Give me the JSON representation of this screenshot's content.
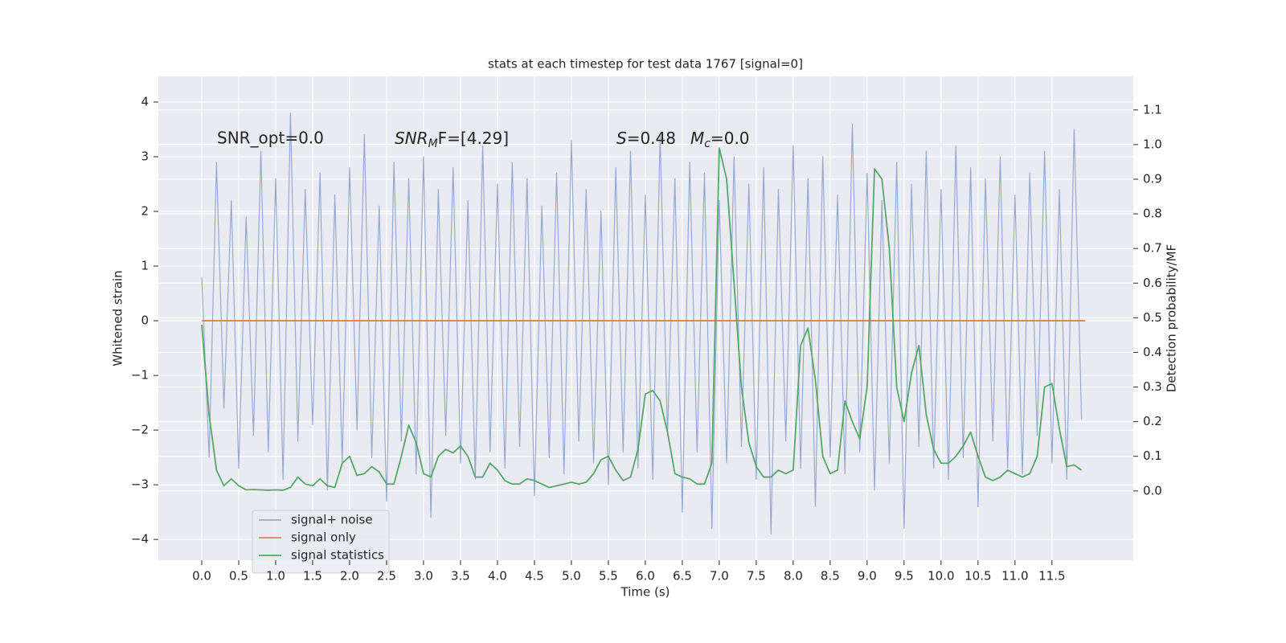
{
  "chart_data": {
    "type": "line",
    "title": "stats at each timestep for test data 1767 [signal=0]",
    "xlabel": "Time (s)",
    "ylabel": "Whitened strain",
    "y2label": "Detection probability/MF",
    "annotations": [
      "SNR_opt=0.0",
      [
        "SNR",
        "M",
        "F=[4.29]"
      ],
      [
        "S",
        "=0.48"
      ],
      [
        "M",
        "c",
        "=0.0"
      ]
    ],
    "legend": "lower left",
    "grid": true,
    "xlim": [
      -0.587,
      12.6
    ],
    "ylim": [
      -4.38,
      4.47
    ],
    "y2lim": [
      -0.2,
      1.197
    ],
    "xticks": [
      {
        "value": 0,
        "label": "0.0"
      },
      0.5,
      {
        "value": 1,
        "label": "1.0"
      },
      1.5,
      {
        "value": 2,
        "label": "2.0"
      },
      2.5,
      {
        "value": 3,
        "label": "3.0"
      },
      3.5,
      {
        "value": 4,
        "label": "4.0"
      },
      4.5,
      {
        "value": 5,
        "label": "5.0"
      },
      5.5,
      {
        "value": 6,
        "label": "6.0"
      },
      6.5,
      {
        "value": 7,
        "label": "7.0"
      },
      7.5,
      {
        "value": 8,
        "label": "8.0"
      },
      8.5,
      {
        "value": 9,
        "label": "9.0"
      },
      9.5,
      {
        "value": 10,
        "label": "10.0"
      },
      10.5,
      {
        "value": 11,
        "label": "11.0"
      },
      11.5
    ],
    "yticks": [
      {
        "value": -4,
        "label": "−4"
      },
      {
        "value": -3,
        "label": "−3"
      },
      {
        "value": -2,
        "label": "−2"
      },
      {
        "value": -1,
        "label": "−1"
      },
      0,
      1,
      2,
      3,
      4
    ],
    "y2ticks": [
      {
        "value": 0,
        "label": "0.0"
      },
      0.1,
      0.2,
      0.3,
      0.4,
      0.5,
      0.6,
      0.7,
      0.8,
      0.9,
      {
        "value": 1,
        "label": "1.0"
      },
      1.1
    ],
    "x": [
      0.0,
      0.1,
      0.2,
      0.3,
      0.4,
      0.5,
      0.6,
      0.7,
      0.8,
      0.9,
      1.0,
      1.1,
      1.2,
      1.3,
      1.4,
      1.5,
      1.6,
      1.7,
      1.8,
      1.9,
      2.0,
      2.1,
      2.2,
      2.3,
      2.4,
      2.5,
      2.6,
      2.7,
      2.8,
      2.9,
      3.0,
      3.1,
      3.2,
      3.3,
      3.4,
      3.5,
      3.6,
      3.7,
      3.8,
      3.9,
      4.0,
      4.1,
      4.2,
      4.3,
      4.4,
      4.5,
      4.6,
      4.7,
      4.8,
      4.9,
      5.0,
      5.1,
      5.2,
      5.3,
      5.4,
      5.5,
      5.6,
      5.7,
      5.8,
      5.9,
      6.0,
      6.1,
      6.2,
      6.3,
      6.4,
      6.5,
      6.6,
      6.7,
      6.8,
      6.9,
      7.0,
      7.1,
      7.2,
      7.3,
      7.4,
      7.5,
      7.6,
      7.7,
      7.8,
      7.9,
      8.0,
      8.1,
      8.2,
      8.3,
      8.4,
      8.5,
      8.6,
      8.7,
      8.8,
      8.9,
      9.0,
      9.1,
      9.2,
      9.3,
      9.4,
      9.5,
      9.6,
      9.7,
      9.8,
      9.9,
      10.0,
      10.1,
      10.2,
      10.3,
      10.4,
      10.5,
      10.6,
      10.7,
      10.8,
      10.9,
      11.0,
      11.1,
      11.2,
      11.3,
      11.4,
      11.5,
      11.6,
      11.7,
      11.8,
      11.9
    ],
    "series": [
      {
        "name": "signal+ noise",
        "color": "#98a9cf",
        "values": [
          0.8,
          -2.5,
          2.9,
          -1.6,
          2.2,
          -2.7,
          1.9,
          -2.1,
          3.1,
          -2.4,
          2.6,
          -2.9,
          3.8,
          -2.2,
          2.4,
          -1.9,
          2.7,
          -3.1,
          2.3,
          -2.6,
          2.8,
          -2.0,
          3.4,
          -2.5,
          2.1,
          -3.3,
          2.9,
          -2.2,
          2.6,
          -2.8,
          3.0,
          -3.6,
          2.4,
          -2.1,
          2.8,
          -2.6,
          2.2,
          -2.9,
          3.2,
          -2.4,
          2.5,
          -2.7,
          2.9,
          -2.3,
          2.6,
          -3.2,
          2.1,
          -2.5,
          2.7,
          -2.8,
          3.3,
          -2.2,
          2.4,
          -2.6,
          2.0,
          -3.0,
          2.8,
          -2.4,
          3.1,
          -2.7,
          2.3,
          -2.9,
          3.4,
          -2.1,
          2.6,
          -3.5,
          2.9,
          -2.4,
          2.7,
          -3.8,
          2.2,
          -2.6,
          3.0,
          -2.3,
          2.5,
          -2.9,
          2.8,
          -3.9,
          2.4,
          -2.2,
          3.2,
          -2.7,
          2.6,
          -3.4,
          3.0,
          -2.5,
          2.3,
          -2.8,
          3.6,
          -2.4,
          2.7,
          -3.1,
          2.2,
          -2.6,
          2.9,
          -3.8,
          2.5,
          -2.3,
          3.1,
          -2.7,
          2.4,
          -2.9,
          3.2,
          -2.5,
          2.8,
          -3.4,
          2.6,
          -2.2,
          3.0,
          -2.7,
          2.3,
          -2.8,
          2.7,
          -2.1,
          3.1,
          -2.6,
          2.4,
          -2.9,
          3.5,
          -1.8
        ]
      },
      {
        "name": "signal only",
        "color": "#dd8452",
        "x": [
          0,
          11.95
        ],
        "values": [
          0,
          0
        ]
      },
      {
        "name": "signal statistics",
        "color": "#55a868",
        "axis": "y2",
        "values": [
          0.48,
          0.22,
          0.06,
          0.015,
          0.035,
          0.015,
          0.003,
          0.004,
          0.003,
          0.002,
          0.003,
          0.002,
          0.01,
          0.04,
          0.02,
          0.015,
          0.035,
          0.015,
          0.01,
          0.08,
          0.1,
          0.045,
          0.05,
          0.07,
          0.055,
          0.02,
          0.02,
          0.1,
          0.19,
          0.14,
          0.05,
          0.04,
          0.1,
          0.12,
          0.11,
          0.13,
          0.1,
          0.04,
          0.04,
          0.08,
          0.06,
          0.03,
          0.02,
          0.02,
          0.035,
          0.03,
          0.02,
          0.01,
          0.015,
          0.02,
          0.025,
          0.02,
          0.025,
          0.05,
          0.09,
          0.1,
          0.06,
          0.03,
          0.04,
          0.12,
          0.28,
          0.29,
          0.26,
          0.17,
          0.05,
          0.04,
          0.035,
          0.02,
          0.02,
          0.08,
          0.99,
          0.9,
          0.6,
          0.3,
          0.14,
          0.07,
          0.04,
          0.04,
          0.06,
          0.05,
          0.06,
          0.42,
          0.47,
          0.32,
          0.1,
          0.05,
          0.06,
          0.26,
          0.2,
          0.15,
          0.3,
          0.93,
          0.9,
          0.7,
          0.3,
          0.2,
          0.34,
          0.42,
          0.22,
          0.12,
          0.08,
          0.08,
          0.1,
          0.13,
          0.17,
          0.1,
          0.04,
          0.03,
          0.04,
          0.06,
          0.05,
          0.04,
          0.05,
          0.1,
          0.3,
          0.31,
          0.18,
          0.07,
          0.075,
          0.06
        ]
      }
    ]
  }
}
